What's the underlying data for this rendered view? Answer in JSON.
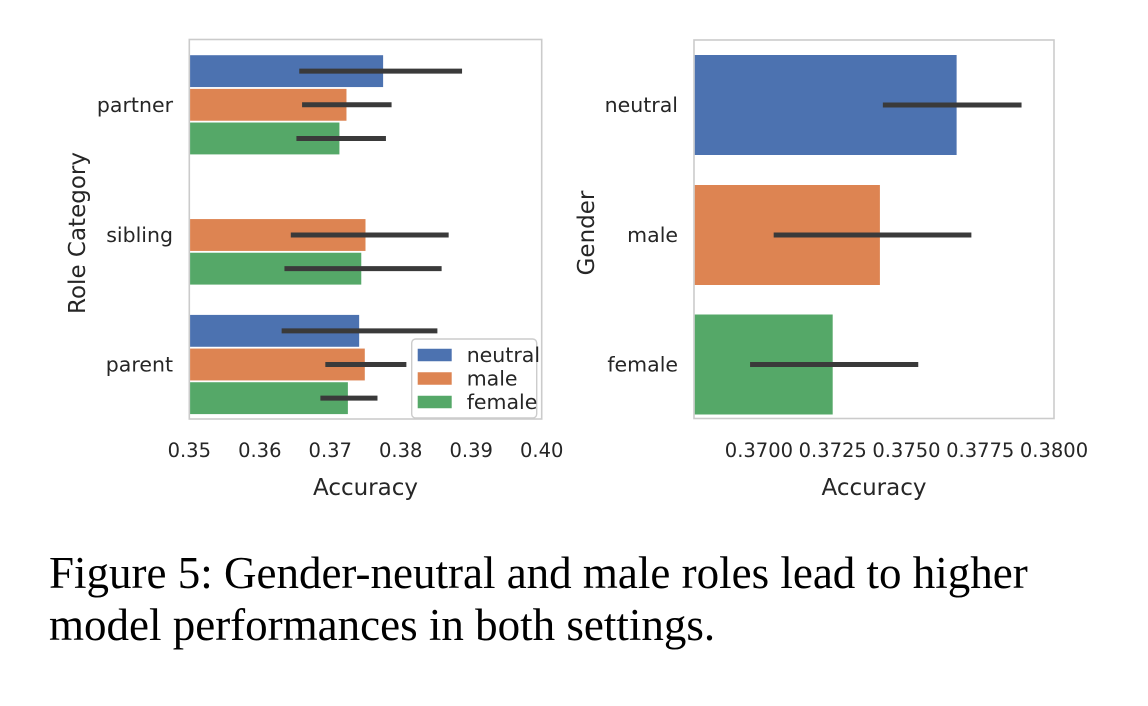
{
  "caption": {
    "lines": [
      "Figure 5: Gender-neutral and male roles lead to higher",
      "model performances in both settings."
    ]
  },
  "colors": {
    "neutral": "#4C72B0",
    "male": "#DD8452",
    "female": "#55A868",
    "error_bar": "#3A3A3A",
    "spine": "#CBCBCB",
    "text": "#262626",
    "legend_border": "#CCCCCC",
    "legend_background": "#FFFFFF",
    "background": "#FFFFFF",
    "caption_text": "#000000"
  },
  "chart_data": [
    {
      "type": "bar",
      "orientation": "horizontal",
      "title": "",
      "xlabel": "Accuracy",
      "ylabel": "Role Category",
      "xlim": [
        0.35,
        0.4
      ],
      "xticks": [
        0.35,
        0.36,
        0.37,
        0.38,
        0.39,
        0.4
      ],
      "xtick_labels": [
        "0.35",
        "0.36",
        "0.37",
        "0.38",
        "0.39",
        "0.40"
      ],
      "categories": [
        "partner",
        "sibling",
        "parent"
      ],
      "series": [
        {
          "name": "neutral",
          "color_key": "neutral",
          "values": [
            0.3775,
            null,
            0.3741
          ],
          "error_low": [
            0.3656,
            null,
            0.3631
          ],
          "error_high": [
            0.3887,
            null,
            0.3852
          ]
        },
        {
          "name": "male",
          "color_key": "male",
          "values": [
            0.3723,
            0.375,
            0.3749
          ],
          "error_low": [
            0.366,
            0.3644,
            0.3693
          ],
          "error_high": [
            0.3787,
            0.3868,
            0.3808
          ]
        },
        {
          "name": "female",
          "color_key": "female",
          "values": [
            0.3713,
            0.3744,
            0.3725
          ],
          "error_low": [
            0.3652,
            0.3635,
            0.3686
          ],
          "error_high": [
            0.3779,
            0.3858,
            0.3767
          ]
        }
      ],
      "legend": {
        "position": "lower right",
        "entries": [
          "neutral",
          "male",
          "female"
        ]
      },
      "grid": false
    },
    {
      "type": "bar",
      "orientation": "horizontal",
      "title": "",
      "xlabel": "Accuracy",
      "ylabel": "Gender",
      "xlim": [
        0.3678,
        0.38
      ],
      "xticks": [
        0.37,
        0.3725,
        0.375,
        0.3775,
        0.38
      ],
      "xtick_labels": [
        "0.3700",
        "0.3725",
        "0.3750",
        "0.3775",
        "0.3800"
      ],
      "categories": [
        "neutral",
        "male",
        "female"
      ],
      "series": [
        {
          "name": "Accuracy",
          "color_keys_by_category": [
            "neutral",
            "male",
            "female"
          ],
          "values": [
            0.3767,
            0.3741,
            0.3725
          ],
          "error_low": [
            0.3742,
            0.3705,
            0.3697
          ],
          "error_high": [
            0.3789,
            0.3772,
            0.3754
          ]
        }
      ],
      "legend": null,
      "grid": false
    }
  ]
}
